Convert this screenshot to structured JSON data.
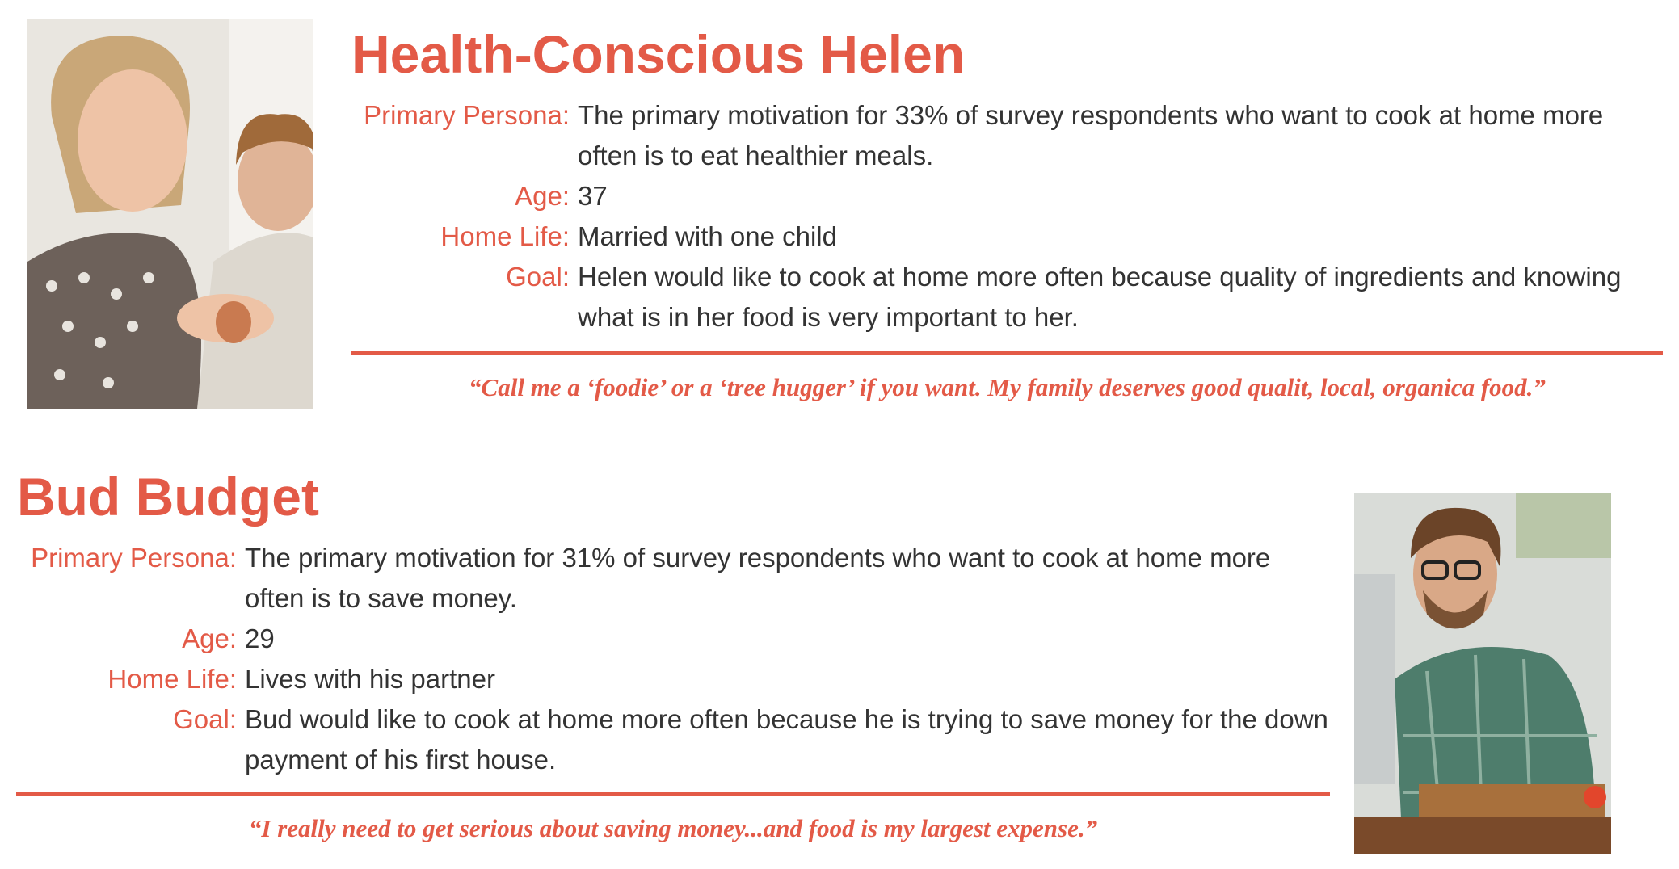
{
  "personas": [
    {
      "name": "Health-Conscious Helen",
      "rows": [
        {
          "label": "Primary Persona:",
          "value": "The primary motivation for 33% of survey respondents who want to cook at home more often is to eat healthier meals."
        },
        {
          "label": "Age:",
          "value": "37"
        },
        {
          "label": "Home Life:",
          "value": "Married with one child"
        },
        {
          "label": "Goal:",
          "value": "Helen would like to cook at home more often because quality of ingredients and knowing what is in her food is very important to her."
        }
      ],
      "quote": "“Call me a ‘foodie’ or a ‘tree hugger’ if you want. My family deserves good qualit, local, organica food.”"
    },
    {
      "name": "Bud Budget",
      "rows": [
        {
          "label": "Primary Persona:",
          "value": "The primary motivation for 31% of survey respondents who want to cook at home more often is to save money."
        },
        {
          "label": "Age:",
          "value": "29"
        },
        {
          "label": "Home Life:",
          "value": "Lives with his partner"
        },
        {
          "label": "Goal:",
          "value": "Bud would like to cook at home more often because he is trying to save money for the down payment of his first house."
        }
      ],
      "quote": "“I really need to get serious about saving money...and food is my largest expense.”"
    }
  ]
}
